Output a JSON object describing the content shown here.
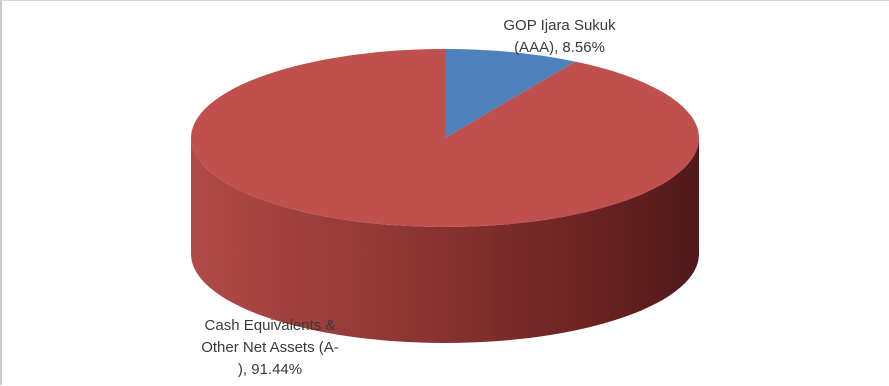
{
  "chart_data": {
    "type": "pie",
    "title": "",
    "labels": [
      "GOP Ijara Sukuk\n(AAA), 8.56%",
      "Cash Equivalents &\nOther Net Assets (A-\n), 91.44%"
    ],
    "values": [
      8.56,
      91.44
    ],
    "colors": [
      "#4f81bd",
      "#c0504d"
    ],
    "is_3d": true,
    "legend": "none"
  }
}
